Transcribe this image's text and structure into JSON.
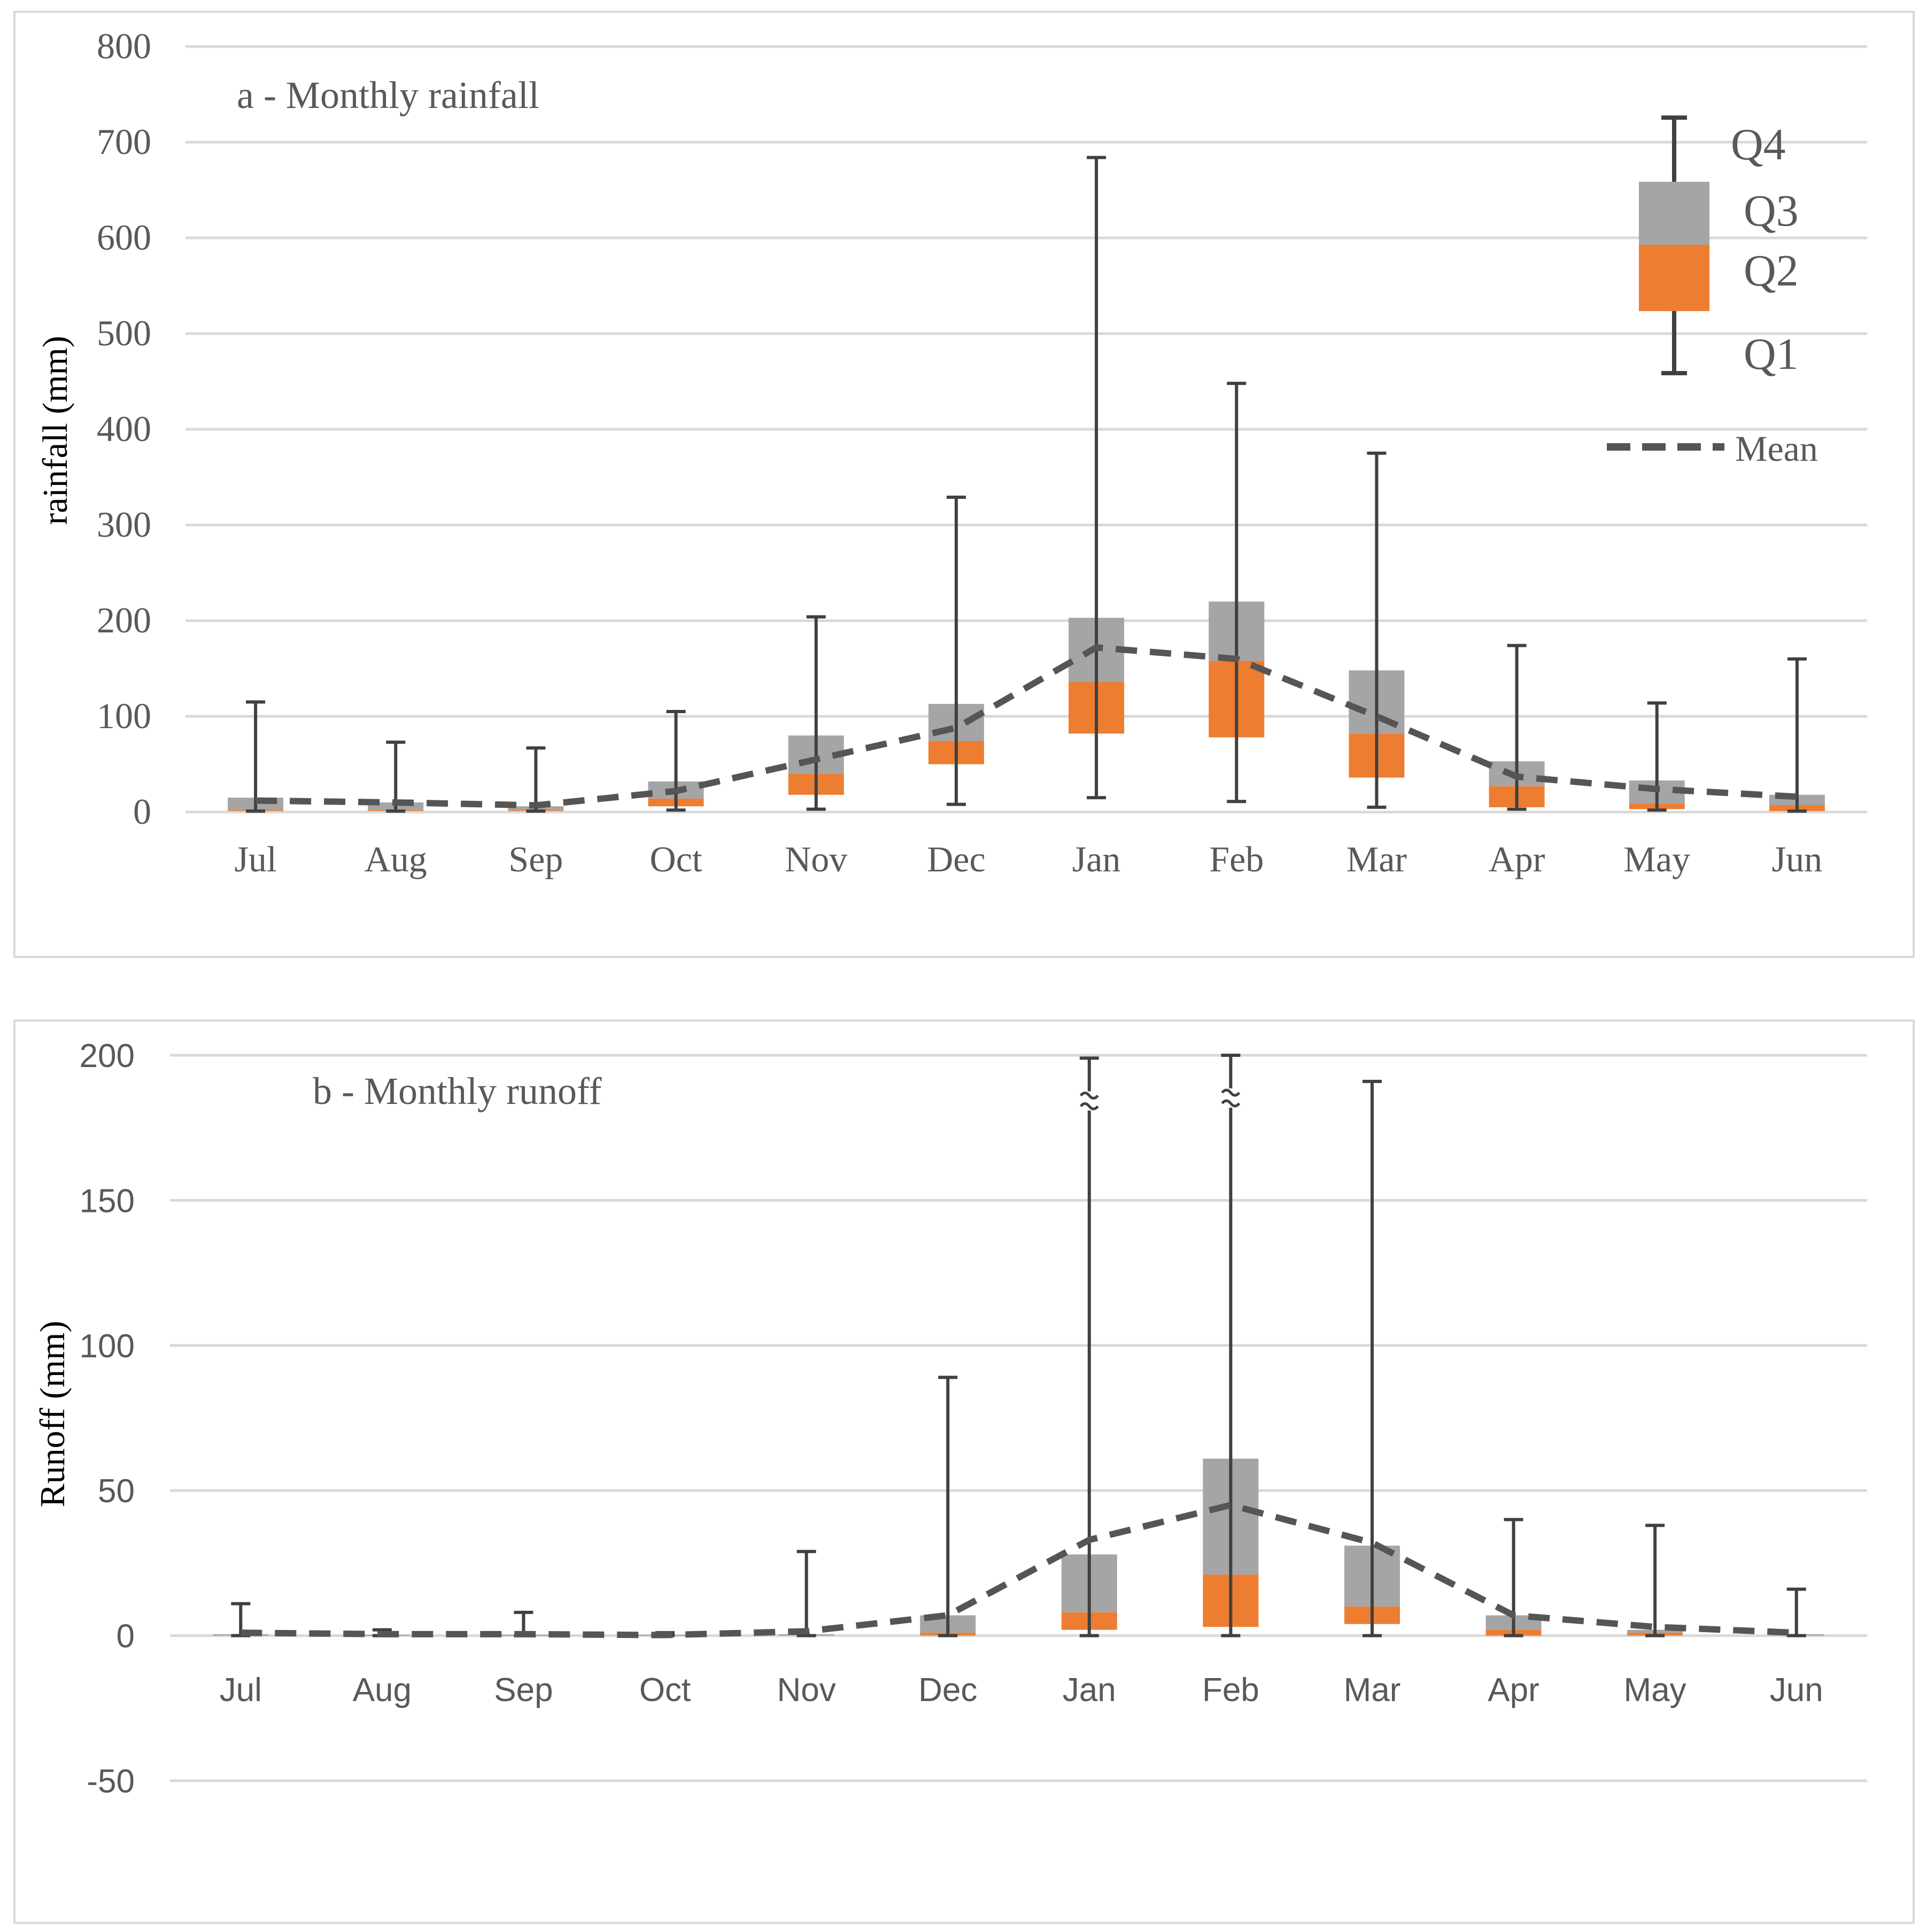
{
  "chart_data": [
    {
      "id": "rainfall",
      "type": "box",
      "title": "a - Monthly rainfall",
      "ylabel": "rainfall (mm)",
      "xlabel": "",
      "ylim": [
        0,
        800
      ],
      "yticks": [
        0,
        100,
        200,
        300,
        400,
        500,
        600,
        700,
        800
      ],
      "categories": [
        "Jul",
        "Aug",
        "Sep",
        "Oct",
        "Nov",
        "Dec",
        "Jan",
        "Feb",
        "Mar",
        "Apr",
        "May",
        "Jun"
      ],
      "min": [
        1,
        1,
        1,
        2,
        3,
        8,
        15,
        11,
        5,
        3,
        2,
        1
      ],
      "q1": [
        1,
        1,
        1,
        6,
        18,
        50,
        82,
        78,
        36,
        5,
        3,
        1
      ],
      "median": [
        2,
        2,
        2,
        14,
        40,
        74,
        136,
        158,
        82,
        27,
        9,
        7
      ],
      "q3": [
        15,
        10,
        6,
        32,
        80,
        113,
        203,
        220,
        148,
        53,
        33,
        18
      ],
      "max": [
        115,
        73,
        67,
        105,
        204,
        329,
        684,
        448,
        375,
        174,
        114,
        160
      ],
      "mean": [
        12,
        10,
        7,
        22,
        55,
        88,
        172,
        160,
        100,
        37,
        24,
        16
      ],
      "legend": {
        "q4": "Q4",
        "q3": "Q3",
        "q2": "Q2",
        "q1": "Q1",
        "mean": "Mean"
      }
    },
    {
      "id": "runoff",
      "type": "box",
      "title": "b - Monthly runoff",
      "ylabel": "Runoff (mm)",
      "xlabel": "",
      "ylim": [
        -50,
        200
      ],
      "yticks": [
        -50,
        0,
        50,
        100,
        150,
        200
      ],
      "categories": [
        "Jul",
        "Aug",
        "Sep",
        "Oct",
        "Nov",
        "Dec",
        "Jan",
        "Feb",
        "Mar",
        "Apr",
        "May",
        "Jun"
      ],
      "min": [
        0,
        0,
        0,
        0,
        0,
        0,
        0,
        0,
        0,
        0,
        0,
        0
      ],
      "q1": [
        0,
        0,
        0,
        0,
        0,
        0,
        2,
        3,
        4,
        0,
        0,
        0
      ],
      "median": [
        0,
        0,
        0,
        0,
        0,
        1,
        8,
        21,
        10,
        2,
        1,
        0
      ],
      "q3": [
        0.5,
        0.3,
        0.3,
        0.3,
        0.5,
        7,
        28,
        61,
        31,
        7,
        2,
        0.5
      ],
      "max": [
        11,
        2,
        8,
        1,
        29,
        89,
        199,
        200,
        191,
        40,
        38,
        16
      ],
      "broken_axis_months": [
        "Jan",
        "Feb"
      ],
      "mean": [
        1,
        0.5,
        0.5,
        0.2,
        1.5,
        7,
        33,
        45,
        32,
        7,
        3,
        1
      ]
    }
  ],
  "colors": {
    "q3_fill": "#a5a5a5",
    "q2_fill": "#ed7d31",
    "whisker": "#404040",
    "mean_line": "#555555",
    "grid": "#d9d9d9",
    "text": "#595959",
    "frame": "#d9d9d9"
  }
}
